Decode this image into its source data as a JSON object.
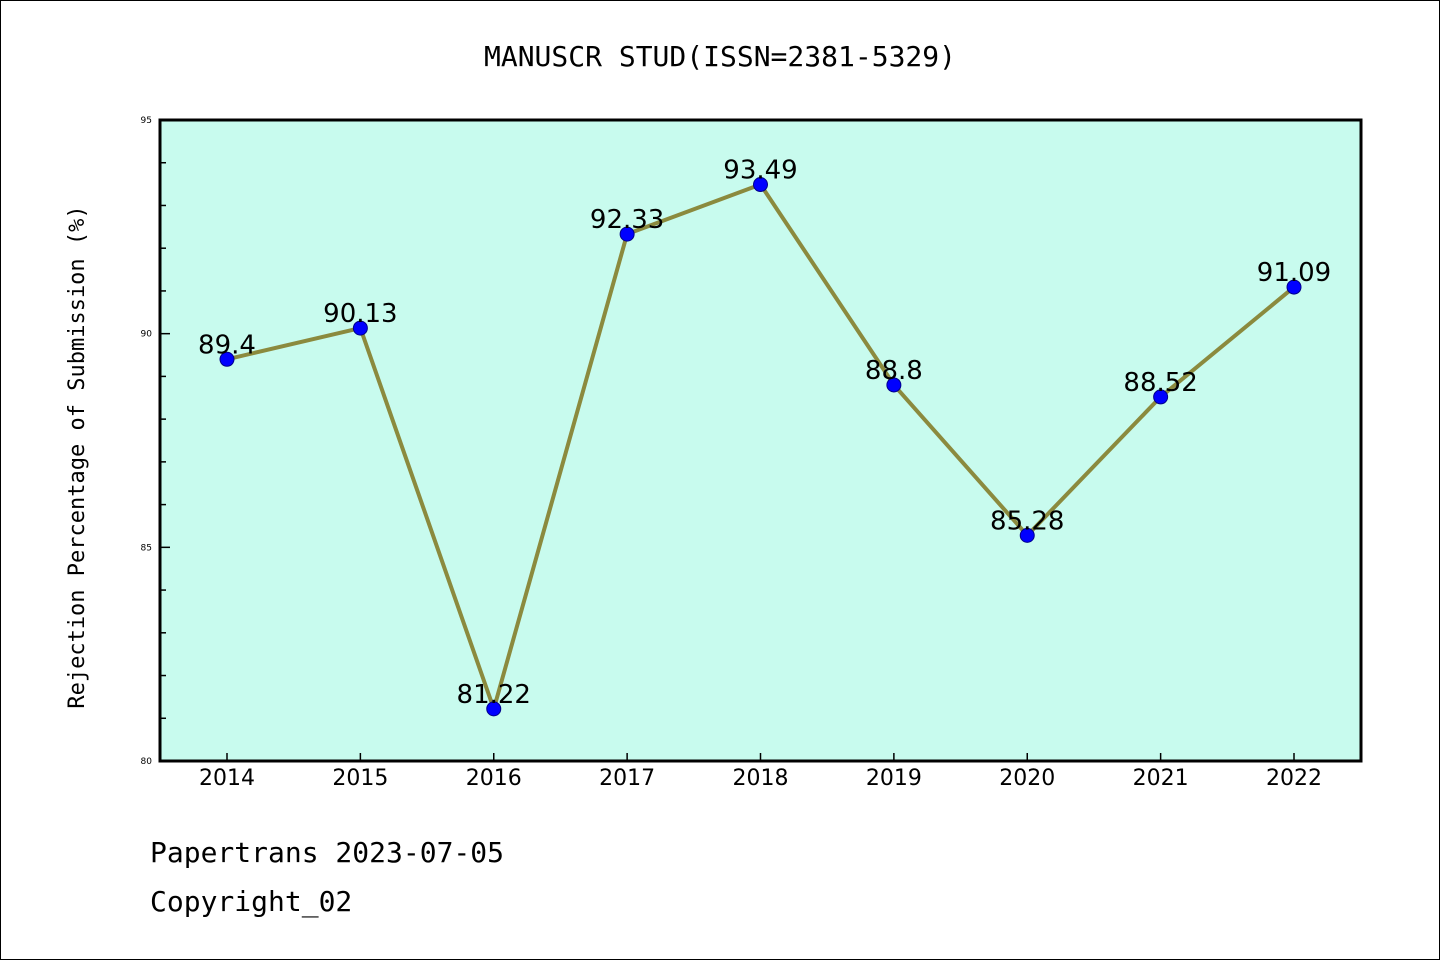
{
  "colors": {
    "plot_background": "#c8fbee",
    "line": "#8b8a3e",
    "marker": "#0000ff",
    "axis": "#000000"
  },
  "footer": {
    "line1": "Papertrans 2023-07-05",
    "line2": "Copyright_02"
  },
  "chart_data": {
    "type": "line",
    "title": "MANUSCR STUD(ISSN=2381-5329)",
    "xlabel": "",
    "ylabel": "Rejection Percentage of Submission (%)",
    "categories": [
      "2014",
      "2015",
      "2016",
      "2017",
      "2018",
      "2019",
      "2020",
      "2021",
      "2022"
    ],
    "series": [
      {
        "values": [
          89.4,
          90.13,
          81.22,
          92.33,
          93.49,
          88.8,
          85.28,
          88.52,
          91.09
        ],
        "labels": [
          "89.4",
          "90.13",
          "81.22",
          "92.33",
          "93.49",
          "88.8",
          "85.28",
          "88.52",
          "91.09"
        ],
        "marker": "circle"
      }
    ],
    "ylim": [
      80,
      95
    ],
    "yticks": [
      "80",
      "85",
      "90",
      "95"
    ],
    "y_minor_step": 1,
    "grid": false,
    "legend": "none"
  }
}
